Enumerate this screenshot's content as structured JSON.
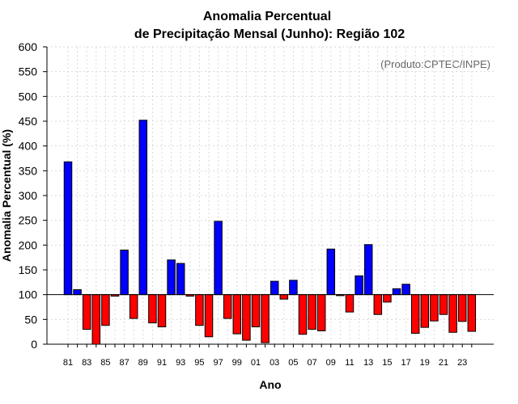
{
  "chart_data": {
    "type": "bar",
    "title": "Anomalia Percentual",
    "subtitle": "de Precipitação Mensal (Junho): Região 102",
    "xlabel": "Ano",
    "ylabel": "Anomalia Percentual (%)",
    "annotation": "(Produto:CPTEC/INPE)",
    "ylim": [
      0,
      600
    ],
    "yticks": [
      0,
      50,
      100,
      150,
      200,
      250,
      300,
      350,
      400,
      450,
      500,
      550,
      600
    ],
    "baseline": 100,
    "grid": true,
    "categories": [
      "81",
      "82",
      "83",
      "84",
      "85",
      "86",
      "87",
      "88",
      "89",
      "90",
      "91",
      "92",
      "93",
      "94",
      "95",
      "96",
      "97",
      "98",
      "99",
      "00",
      "01",
      "02",
      "03",
      "04",
      "05",
      "06",
      "07",
      "08",
      "09",
      "10",
      "11",
      "12",
      "13",
      "14",
      "15",
      "16",
      "17",
      "18",
      "19",
      "20",
      "21",
      "22",
      "23",
      "24"
    ],
    "tick_labels": [
      "81",
      "83",
      "85",
      "87",
      "89",
      "91",
      "93",
      "95",
      "97",
      "99",
      "01",
      "03",
      "05",
      "07",
      "09",
      "11",
      "13",
      "15",
      "17",
      "19",
      "21",
      "23"
    ],
    "values": [
      368,
      110,
      30,
      0,
      38,
      97,
      190,
      52,
      452,
      43,
      35,
      170,
      163,
      97,
      38,
      15,
      248,
      52,
      21,
      8,
      35,
      3,
      127,
      91,
      129,
      20,
      30,
      27,
      192,
      98,
      65,
      138,
      201,
      60,
      85,
      112,
      121,
      22,
      34,
      47,
      60,
      24,
      46,
      26
    ],
    "colors": {
      "above": "#0000ff",
      "below": "#ff0000",
      "axis": "#000000",
      "grid": "#d9d9d9",
      "annotation": "#666666"
    }
  }
}
